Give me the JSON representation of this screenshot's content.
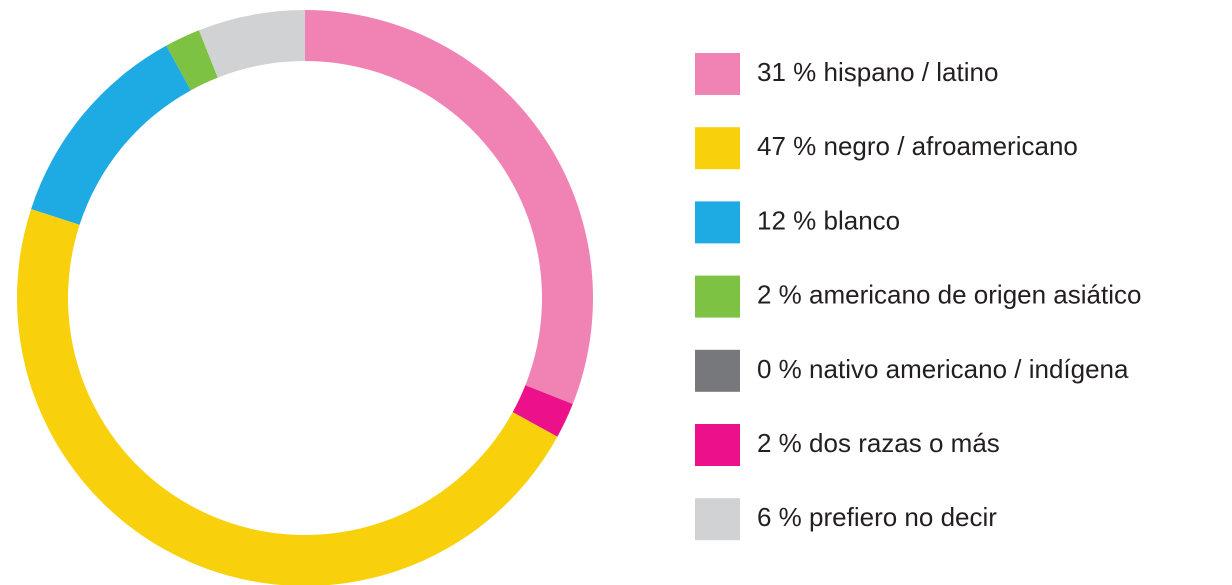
{
  "chart_data": {
    "type": "donut",
    "categories": [
      "hispano / latino",
      "dos razas o más",
      "negro / afroamericano",
      "blanco",
      "americano de origen asiático",
      "nativo americano / indígena",
      "prefiero no decir"
    ],
    "values": [
      31,
      2,
      47,
      12,
      2,
      0,
      6
    ],
    "value_labels": [
      "31 %",
      "2 %",
      "47 %",
      "12 %",
      "2 %",
      "0 %",
      "6 %"
    ],
    "colors": [
      "#f083b4",
      "#ec118b",
      "#f8d10c",
      "#1eaae2",
      "#7dc242",
      "#77787b",
      "#d1d2d4"
    ],
    "legend": "right"
  }
}
